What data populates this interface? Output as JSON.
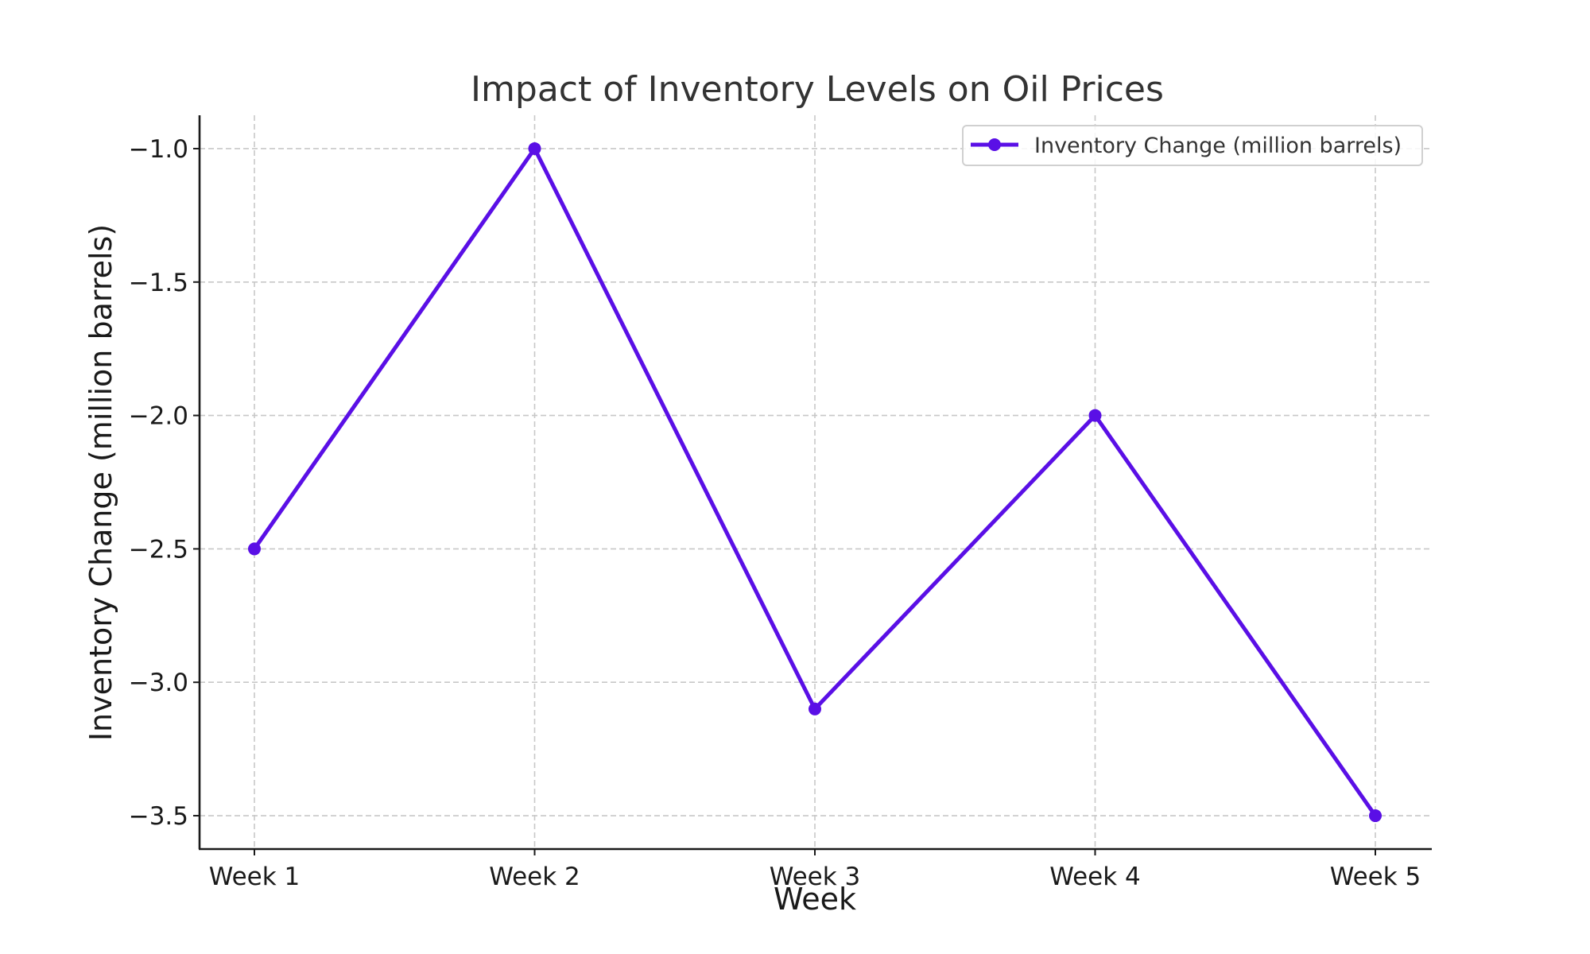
{
  "chart_data": {
    "type": "line",
    "title": "Impact of Inventory Levels on Oil Prices",
    "xlabel": "Week",
    "ylabel": "Inventory Change (million barrels)",
    "categories": [
      "Week 1",
      "Week 2",
      "Week 3",
      "Week 4",
      "Week 5"
    ],
    "series": [
      {
        "name": "Inventory Change (million barrels)",
        "values": [
          -2.5,
          -1.0,
          -3.1,
          -2.0,
          -3.5
        ],
        "color": "#5a0fe6",
        "marker": "circle"
      }
    ],
    "yticks": [
      -1.0,
      -1.5,
      -2.0,
      -2.5,
      -3.0,
      -3.5
    ],
    "ytick_labels": [
      "−1.0",
      "−1.5",
      "−2.0",
      "−2.5",
      "−3.0",
      "−3.5"
    ],
    "ylim": [
      -3.625,
      -0.875
    ],
    "grid": true,
    "legend_position": "top-right"
  }
}
